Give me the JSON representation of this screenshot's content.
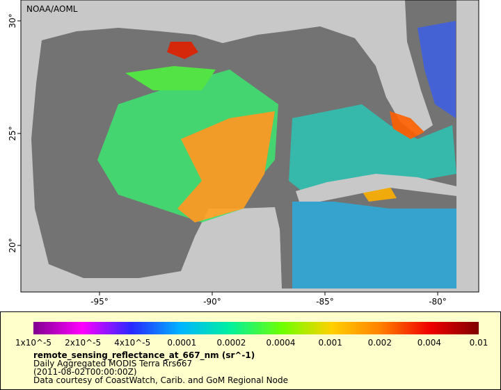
{
  "header": {
    "title": "NOAA/AOML"
  },
  "map": {
    "lon_labels": [
      "-95°",
      "-90°",
      "-85°",
      "-80°"
    ],
    "lat_labels": [
      "30°",
      "25°",
      "20°"
    ]
  },
  "legend": {
    "scale_labels": [
      "1x10^-5",
      "2x10^-5",
      "4x10^-5",
      "0.0001",
      "0.0002",
      "0.0004",
      "0.001",
      "0.002",
      "0.004",
      "0.01"
    ],
    "variable": "remote_sensing_reflectance_at_667_nm (sr^-1)",
    "product": "Daily Aggregated MODIS Terra Rrs667",
    "time": "(2011-08-02T00:00:00Z)",
    "credit": "Data courtesy of CoastWatch, Carib. and GoM Regional Node"
  }
}
